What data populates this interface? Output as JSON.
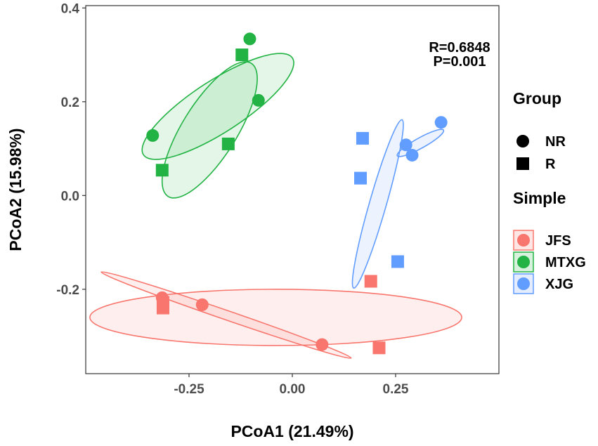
{
  "chart_data": {
    "type": "scatter",
    "title": "",
    "xlabel": "PCoA1 (21.49%)",
    "ylabel": "PCoA2 (15.98%)",
    "xlim": [
      -0.5,
      0.5
    ],
    "ylim": [
      -0.38,
      0.405
    ],
    "x_ticks": [
      {
        "value": -0.25,
        "label": "-0.25"
      },
      {
        "value": 0.0,
        "label": "0.00"
      },
      {
        "value": 0.25,
        "label": "0.25"
      }
    ],
    "y_ticks": [
      {
        "value": 0.4,
        "label": "0.4"
      },
      {
        "value": 0.2,
        "label": "0.2"
      },
      {
        "value": 0.0,
        "label": "0.0"
      },
      {
        "value": -0.2,
        "label": "-0.2"
      }
    ],
    "grid": false,
    "annotations": [
      "R=0.6848",
      "P=0.001"
    ],
    "colors": {
      "JFS": "#F8766D",
      "MTXG": "#22B344",
      "XJG": "#619CFF"
    },
    "points": [
      {
        "simple": "JFS",
        "group": "NR",
        "x": -0.315,
        "y": -0.218
      },
      {
        "simple": "JFS",
        "group": "NR",
        "x": -0.218,
        "y": -0.233
      },
      {
        "simple": "JFS",
        "group": "NR",
        "x": 0.072,
        "y": -0.318
      },
      {
        "simple": "JFS",
        "group": "R",
        "x": -0.313,
        "y": -0.228
      },
      {
        "simple": "JFS",
        "group": "R",
        "x": -0.313,
        "y": -0.24
      },
      {
        "simple": "JFS",
        "group": "R",
        "x": 0.19,
        "y": -0.183
      },
      {
        "simple": "JFS",
        "group": "R",
        "x": 0.21,
        "y": -0.325
      },
      {
        "simple": "MTXG",
        "group": "NR",
        "x": -0.338,
        "y": 0.128
      },
      {
        "simple": "MTXG",
        "group": "NR",
        "x": -0.103,
        "y": 0.334
      },
      {
        "simple": "MTXG",
        "group": "NR",
        "x": -0.082,
        "y": 0.203
      },
      {
        "simple": "MTXG",
        "group": "R",
        "x": -0.315,
        "y": 0.054
      },
      {
        "simple": "MTXG",
        "group": "R",
        "x": -0.122,
        "y": 0.3
      },
      {
        "simple": "MTXG",
        "group": "R",
        "x": -0.155,
        "y": 0.11
      },
      {
        "simple": "XJG",
        "group": "NR",
        "x": 0.275,
        "y": 0.108
      },
      {
        "simple": "XJG",
        "group": "NR",
        "x": 0.29,
        "y": 0.086
      },
      {
        "simple": "XJG",
        "group": "NR",
        "x": 0.36,
        "y": 0.156
      },
      {
        "simple": "XJG",
        "group": "R",
        "x": 0.17,
        "y": 0.122
      },
      {
        "simple": "XJG",
        "group": "R",
        "x": 0.165,
        "y": 0.037
      },
      {
        "simple": "XJG",
        "group": "R",
        "x": 0.255,
        "y": -0.141
      }
    ],
    "ellipses": [
      {
        "simple": "MTXG",
        "group": "NR",
        "cx": -0.18,
        "cy": 0.19,
        "rx": 0.215,
        "ry": 0.055,
        "angle": 33
      },
      {
        "simple": "MTXG",
        "group": "R",
        "cx": -0.2,
        "cy": 0.14,
        "rx": 0.19,
        "ry": 0.058,
        "angle": 58
      },
      {
        "simple": "XJG",
        "group": "R",
        "cx": 0.207,
        "cy": -0.018,
        "rx": 0.212,
        "ry": 0.018,
        "angle": 74
      },
      {
        "simple": "XJG",
        "group": "NR",
        "cx": 0.31,
        "cy": 0.112,
        "rx": 0.064,
        "ry": 0.011,
        "angle": 29
      },
      {
        "simple": "JFS",
        "group": "R",
        "cx": -0.04,
        "cy": -0.26,
        "rx": 0.45,
        "ry": 0.06,
        "angle": 0
      },
      {
        "simple": "JFS",
        "group": "NR",
        "cx": -0.16,
        "cy": -0.255,
        "rx": 0.32,
        "ry": 0.01,
        "angle": -19
      }
    ],
    "legend": {
      "position": "right",
      "group_title": "Group",
      "group_items": [
        {
          "label": "NR",
          "shape": "circle"
        },
        {
          "label": "R",
          "shape": "square"
        }
      ],
      "simple_title": "Simple",
      "simple_items": [
        {
          "label": "JFS",
          "color": "#F8766D"
        },
        {
          "label": "MTXG",
          "color": "#22B344"
        },
        {
          "label": "XJG",
          "color": "#619CFF"
        }
      ]
    }
  }
}
